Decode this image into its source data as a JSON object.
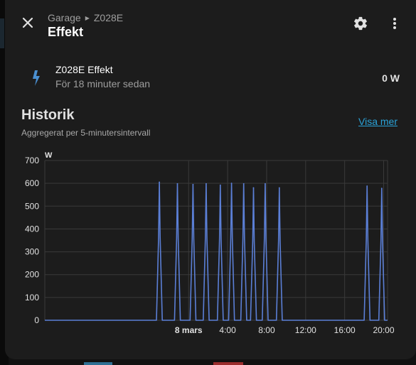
{
  "header": {
    "breadcrumb": [
      "Garage",
      "Z028E"
    ],
    "title": "Effekt"
  },
  "entity": {
    "name": "Z028E Effekt",
    "last_changed": "För 18 minuter sedan",
    "state": "0 W",
    "icon": "lightning-bolt-icon"
  },
  "history": {
    "title": "Historik",
    "subtitle": "Aggregerat per 5-minutersintervall",
    "show_more": "Visa mer"
  },
  "colors": {
    "accent": "#2aa3d9",
    "series": "#5b7fd6",
    "entity_icon": "#4a8fd0"
  },
  "chart_data": {
    "type": "line",
    "unit": "W",
    "ylim": [
      0,
      700
    ],
    "yticks": [
      0,
      100,
      200,
      300,
      400,
      500,
      600,
      700
    ],
    "xlim_hours": [
      -14.75,
      20.4
    ],
    "xticks": [
      {
        "hour": 0,
        "label": "8 mars"
      },
      {
        "hour": 4,
        "label": "4:00"
      },
      {
        "hour": 8,
        "label": "8:00"
      },
      {
        "hour": 12,
        "label": "12:00"
      },
      {
        "hour": 16,
        "label": "16:00"
      },
      {
        "hour": 20,
        "label": "20:00"
      }
    ],
    "grid": true,
    "series": [
      {
        "name": "",
        "peaks": [
          {
            "hour": -3.0,
            "value": 605
          },
          {
            "hour": -1.15,
            "value": 598
          },
          {
            "hour": 0.45,
            "value": 595
          },
          {
            "hour": 1.8,
            "value": 598
          },
          {
            "hour": 3.25,
            "value": 592
          },
          {
            "hour": 4.4,
            "value": 600
          },
          {
            "hour": 5.65,
            "value": 598
          },
          {
            "hour": 6.65,
            "value": 580
          },
          {
            "hour": 7.85,
            "value": 598
          },
          {
            "hour": 9.3,
            "value": 580
          },
          {
            "hour": 18.3,
            "value": 588
          },
          {
            "hour": 19.8,
            "value": 578
          }
        ]
      }
    ]
  }
}
